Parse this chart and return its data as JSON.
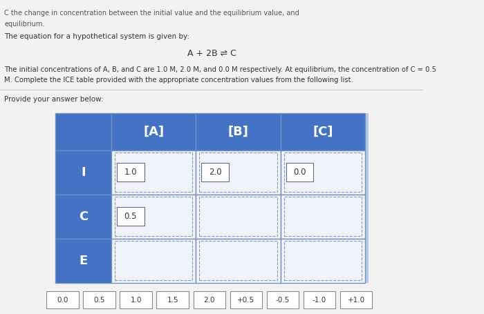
{
  "title_line1": "C the change in concentration between the initial value and the equilibrium value, and",
  "title_line2": "equilibrium.",
  "equation_label": "The equation for a hypothetical system is given by:",
  "equation": "A + 2B ⇌ C",
  "desc_line1": "The initial concentrations of A, B, and C are 1.0 M, 2.0 M, and 0.0 M respectively. At equilibrium, the concentration of C = 0.5",
  "desc_line2": "M. Complete the ICE table provided with the appropriate concentration values from the following list.",
  "answer_label": "Provide your answer below:",
  "col_headers": [
    "[A]",
    "[B]",
    "[C]"
  ],
  "row_headers": [
    "I",
    "C",
    "E"
  ],
  "cell_values": {
    "I_A": "1.0",
    "I_B": "2.0",
    "I_C": "0.0",
    "C_A": "0.5",
    "C_B": "",
    "C_C": "",
    "E_A": "",
    "E_B": "",
    "E_C": ""
  },
  "answer_choices": [
    "0.0",
    "0.5",
    "1.0",
    "1.5",
    "2.0",
    "+0.5",
    "-0.5",
    "-1.0",
    "+1.0"
  ],
  "header_bg": "#4472C4",
  "cell_light": "#F0F4FA",
  "table_bg": "#B8C9E8",
  "page_bg": "#F2F2F2",
  "separator_color": "#CCCCCC",
  "edge_color": "#7090C0",
  "dash_color": "#8899AA",
  "text_white": "#FFFFFF",
  "text_dark": "#333333",
  "text_gray": "#555555"
}
